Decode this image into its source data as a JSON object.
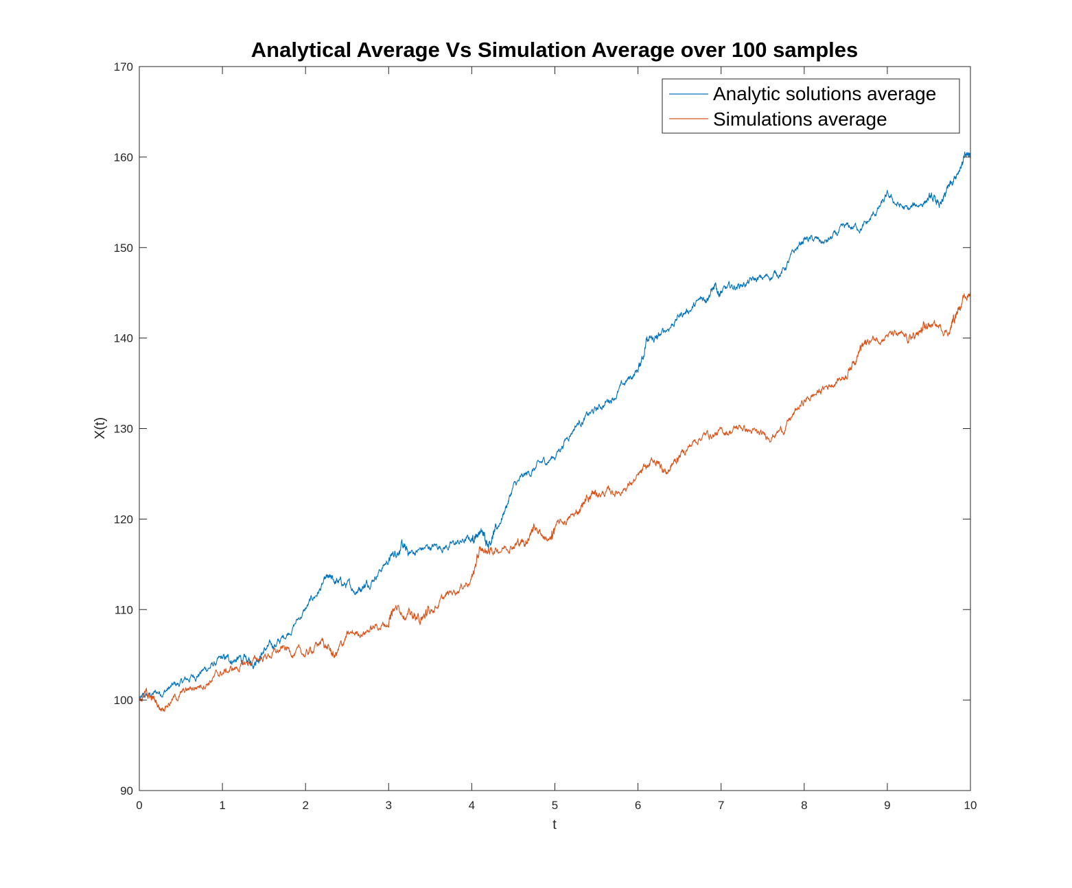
{
  "chart_data": {
    "type": "line",
    "title": "Analytical Average Vs Simulation Average over 100 samples",
    "xlabel": "t",
    "ylabel": "X(t)",
    "xlim": [
      0,
      10
    ],
    "ylim": [
      90,
      170
    ],
    "xticks": [
      0,
      1,
      2,
      3,
      4,
      5,
      6,
      7,
      8,
      9,
      10
    ],
    "yticks": [
      90,
      100,
      110,
      120,
      130,
      140,
      150,
      160,
      170
    ],
    "grid": false,
    "legend_position": "top-right",
    "series": [
      {
        "name": "Analytic solutions average",
        "color": "#0072BD",
        "points": [
          [
            0,
            100
          ],
          [
            0.25,
            100.9
          ],
          [
            0.5,
            101.8
          ],
          [
            0.75,
            103.2
          ],
          [
            1.0,
            104.4
          ],
          [
            1.2,
            104.5
          ],
          [
            1.35,
            104.1
          ],
          [
            1.5,
            105.5
          ],
          [
            1.7,
            106.5
          ],
          [
            2.0,
            110
          ],
          [
            2.25,
            113.2
          ],
          [
            2.4,
            113
          ],
          [
            2.6,
            112.2
          ],
          [
            2.75,
            113
          ],
          [
            3.0,
            115.5
          ],
          [
            3.15,
            117
          ],
          [
            3.25,
            116.2
          ],
          [
            3.5,
            116.9
          ],
          [
            3.75,
            117.1
          ],
          [
            4.0,
            117.8
          ],
          [
            4.1,
            118.7
          ],
          [
            4.2,
            117.5
          ],
          [
            4.3,
            118.8
          ],
          [
            4.5,
            123.5
          ],
          [
            4.75,
            125.5
          ],
          [
            5.0,
            127
          ],
          [
            5.25,
            130.5
          ],
          [
            5.5,
            132
          ],
          [
            5.75,
            134
          ],
          [
            6.0,
            136.5
          ],
          [
            6.1,
            139.5
          ],
          [
            6.25,
            140
          ],
          [
            6.5,
            142.5
          ],
          [
            6.75,
            144
          ],
          [
            6.9,
            145.5
          ],
          [
            7.0,
            145
          ],
          [
            7.25,
            146
          ],
          [
            7.5,
            146.5
          ],
          [
            7.75,
            147.5
          ],
          [
            8.0,
            151
          ],
          [
            8.25,
            150.5
          ],
          [
            8.5,
            152
          ],
          [
            8.75,
            152.5
          ],
          [
            9.0,
            155.5
          ],
          [
            9.25,
            154
          ],
          [
            9.5,
            155.5
          ],
          [
            9.65,
            154.5
          ],
          [
            9.75,
            157
          ],
          [
            9.9,
            159.5
          ],
          [
            10.0,
            160.5
          ]
        ]
      },
      {
        "name": "Simulations average",
        "color": "#D95319",
        "points": [
          [
            0,
            100
          ],
          [
            0.1,
            100.7
          ],
          [
            0.25,
            99.3
          ],
          [
            0.5,
            100.6
          ],
          [
            0.75,
            101.8
          ],
          [
            1.0,
            103
          ],
          [
            1.25,
            103.8
          ],
          [
            1.5,
            104.8
          ],
          [
            1.75,
            105.6
          ],
          [
            2.0,
            105
          ],
          [
            2.2,
            106.5
          ],
          [
            2.35,
            104.8
          ],
          [
            2.5,
            107
          ],
          [
            2.75,
            107.8
          ],
          [
            3.0,
            108.5
          ],
          [
            3.05,
            110.5
          ],
          [
            3.25,
            109.5
          ],
          [
            3.4,
            108.8
          ],
          [
            3.5,
            110
          ],
          [
            3.75,
            111.8
          ],
          [
            4.0,
            113.5
          ],
          [
            4.1,
            116.5
          ],
          [
            4.25,
            116.5
          ],
          [
            4.5,
            117.3
          ],
          [
            4.65,
            117.5
          ],
          [
            4.75,
            119.2
          ],
          [
            4.95,
            117.5
          ],
          [
            5.0,
            119
          ],
          [
            5.25,
            120.5
          ],
          [
            5.4,
            122.5
          ],
          [
            5.5,
            122.8
          ],
          [
            5.75,
            123
          ],
          [
            6.0,
            124.5
          ],
          [
            6.2,
            126.5
          ],
          [
            6.35,
            125.2
          ],
          [
            6.5,
            127
          ],
          [
            6.75,
            129.2
          ],
          [
            7.0,
            129.5
          ],
          [
            7.25,
            130.2
          ],
          [
            7.5,
            129
          ],
          [
            7.75,
            130
          ],
          [
            8.0,
            133
          ],
          [
            8.25,
            134.5
          ],
          [
            8.5,
            136
          ],
          [
            8.65,
            138.5
          ],
          [
            8.75,
            139.5
          ],
          [
            9.0,
            140.5
          ],
          [
            9.25,
            139.8
          ],
          [
            9.4,
            140.5
          ],
          [
            9.5,
            141.5
          ],
          [
            9.75,
            140.8
          ],
          [
            9.85,
            143.5
          ],
          [
            10.0,
            145
          ]
        ]
      }
    ]
  }
}
